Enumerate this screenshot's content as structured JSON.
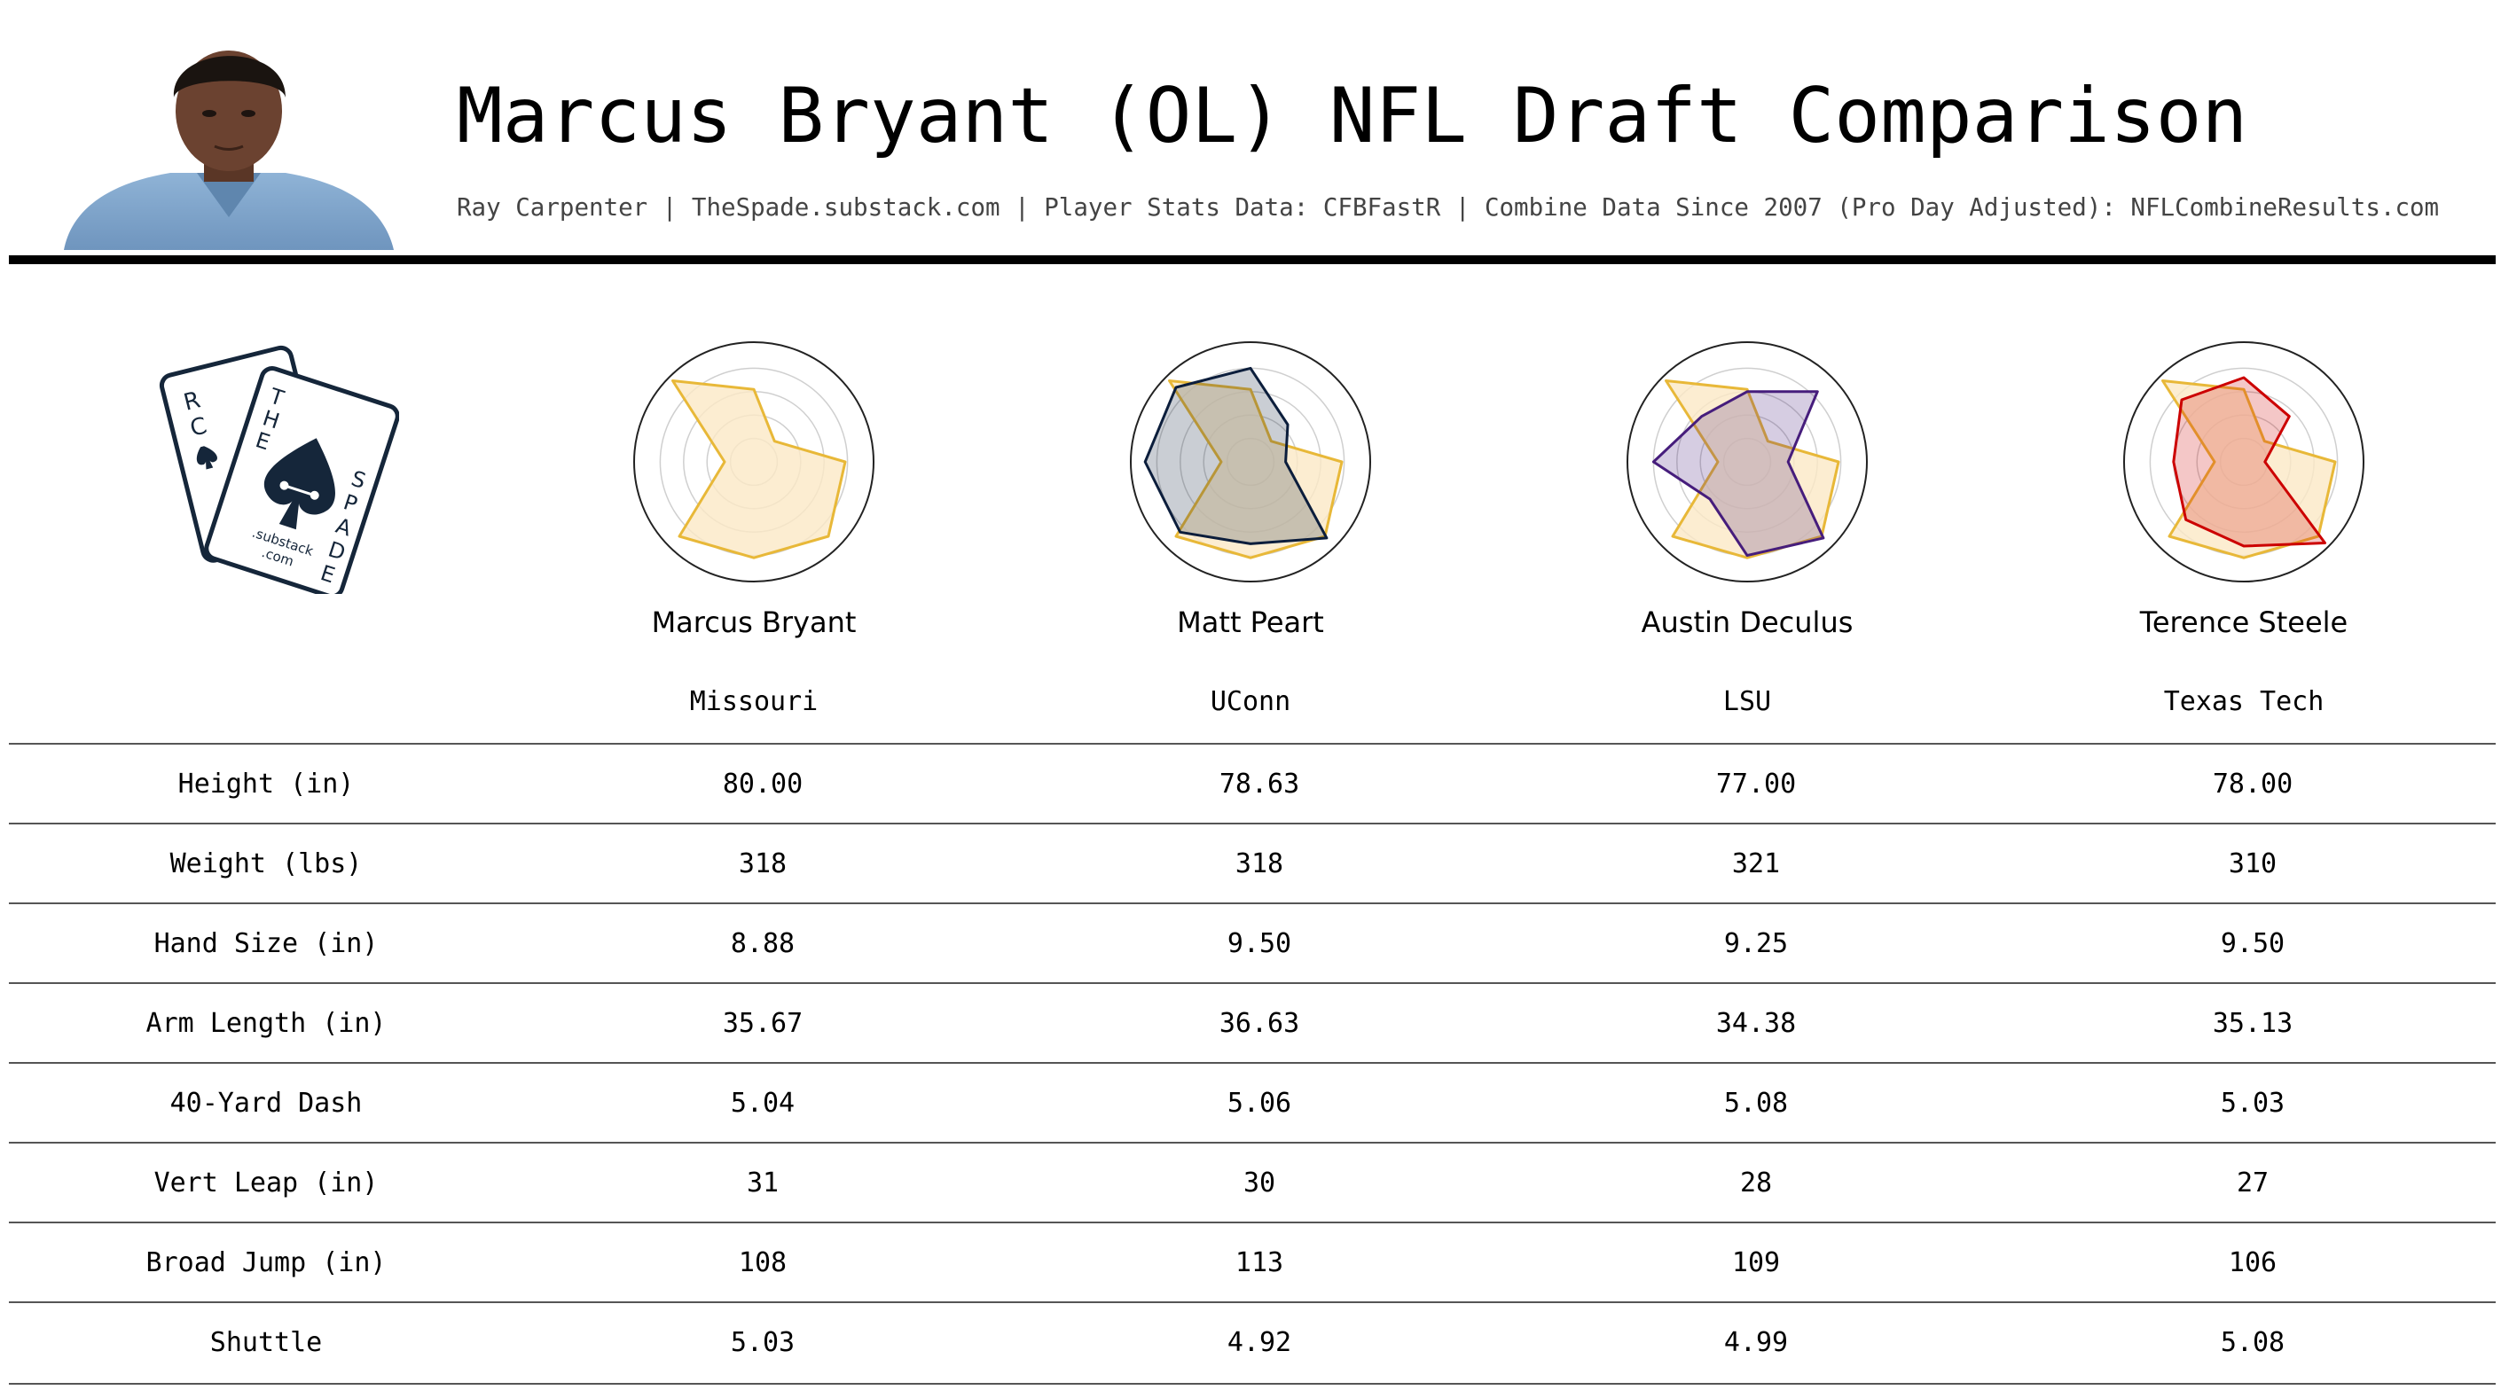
{
  "header": {
    "title": "Marcus Bryant (OL) NFL Draft Comparison",
    "subtitle": "Ray Carpenter | TheSpade.substack.com | Player Stats Data: CFBFastR | Combine Data Since 2007 (Pro Day Adjusted): NFLCombineResults.com"
  },
  "logo": {
    "letters": [
      "R",
      "C",
      "T",
      "H",
      "E",
      "S",
      "P",
      "A",
      "D",
      "E"
    ],
    "caption1": ".substack",
    "caption2": ".com",
    "color": "#15263a"
  },
  "colors": {
    "base": "#e8b838",
    "base_fill": "#fbe9c6",
    "peart": "#0c1e3c",
    "deculus": "#461d7c",
    "steele": "#cc0000"
  },
  "players": [
    {
      "name": "Marcus Bryant",
      "school": "Missouri"
    },
    {
      "name": "Matt Peart",
      "school": "UConn"
    },
    {
      "name": "Austin Deculus",
      "school": "LSU"
    },
    {
      "name": "Terence Steele",
      "school": "Texas Tech"
    }
  ],
  "table": {
    "rows": [
      {
        "label": "Height (in)",
        "values": [
          "80.00",
          "78.63",
          "77.00",
          "78.00"
        ]
      },
      {
        "label": "Weight (lbs)",
        "values": [
          "318",
          "318",
          "321",
          "310"
        ]
      },
      {
        "label": "Hand Size (in)",
        "values": [
          "8.88",
          "9.50",
          "9.25",
          "9.50"
        ]
      },
      {
        "label": "Arm Length (in)",
        "values": [
          "35.67",
          "36.63",
          "34.38",
          "35.13"
        ]
      },
      {
        "label": "40-Yard Dash",
        "values": [
          "5.04",
          "5.06",
          "5.08",
          "5.03"
        ]
      },
      {
        "label": "Vert Leap (in)",
        "values": [
          "31",
          "30",
          "28",
          "27"
        ]
      },
      {
        "label": "Broad Jump (in)",
        "values": [
          "108",
          "113",
          "109",
          "106"
        ]
      },
      {
        "label": "Shuttle",
        "values": [
          "5.03",
          "4.92",
          "4.99",
          "5.08"
        ]
      }
    ]
  },
  "chart_data": [
    {
      "type": "radar",
      "player": "Marcus Bryant",
      "series": [
        {
          "name": "Marcus Bryant",
          "color": "#e8b838",
          "values": [
            0.78,
            0.25,
            0.62,
            0.98,
            0.25,
            0.9,
            0.82,
            0.9
          ]
        }
      ]
    },
    {
      "type": "radar",
      "player": "Matt Peart",
      "series": [
        {
          "name": "Marcus Bryant",
          "color": "#e8b838",
          "values": [
            0.78,
            0.25,
            0.62,
            0.98,
            0.25,
            0.9,
            0.82,
            0.9
          ]
        },
        {
          "name": "Matt Peart",
          "color": "#0c1e3c",
          "values": [
            0.3,
            0.45,
            0.8,
            0.9,
            0.9,
            0.85,
            0.7,
            0.92
          ]
        }
      ]
    },
    {
      "type": "radar",
      "player": "Austin Deculus",
      "series": [
        {
          "name": "Marcus Bryant",
          "color": "#e8b838",
          "values": [
            0.78,
            0.25,
            0.62,
            0.98,
            0.25,
            0.9,
            0.82,
            0.9
          ]
        },
        {
          "name": "Austin Deculus",
          "color": "#461d7c",
          "values": [
            0.35,
            0.85,
            0.6,
            0.55,
            0.8,
            0.45,
            0.8,
            0.92
          ]
        }
      ]
    },
    {
      "type": "radar",
      "player": "Terence Steele",
      "series": [
        {
          "name": "Marcus Bryant",
          "color": "#e8b838",
          "values": [
            0.78,
            0.25,
            0.62,
            0.98,
            0.25,
            0.9,
            0.82,
            0.9
          ]
        },
        {
          "name": "Terence Steele",
          "color": "#cc0000",
          "values": [
            0.18,
            0.55,
            0.72,
            0.75,
            0.6,
            0.7,
            0.72,
            0.98
          ]
        }
      ]
    }
  ]
}
